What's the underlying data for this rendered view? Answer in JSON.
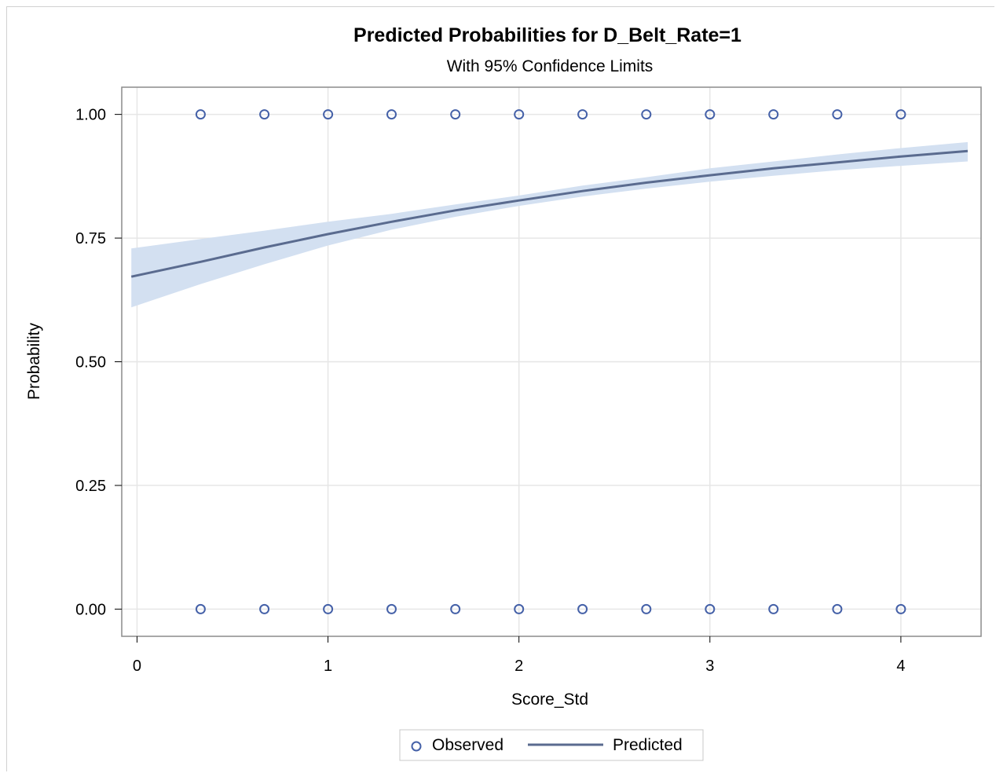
{
  "chart_data": {
    "type": "line",
    "title": "Predicted Probabilities for D_Belt_Rate=1",
    "subtitle": "With 95% Confidence Limits",
    "xlabel": "Score_Std",
    "ylabel": "Probability",
    "xlim": [
      -0.08,
      4.42
    ],
    "ylim": [
      -0.055,
      1.055
    ],
    "x_ticks": [
      0,
      1,
      2,
      3,
      4
    ],
    "x_tick_labels": [
      "0",
      "1",
      "2",
      "3",
      "4"
    ],
    "y_ticks": [
      0,
      0.25,
      0.5,
      0.75,
      1.0
    ],
    "y_tick_labels": [
      "0.00",
      "0.25",
      "0.50",
      "0.75",
      "1.00"
    ],
    "grid": true,
    "legend": {
      "position": "bottom",
      "entries": [
        "Observed",
        "Predicted"
      ]
    },
    "colors": {
      "observed": "#4561a8",
      "predicted": "#5a6b8f",
      "band": "#d3e0f1",
      "grid": "#e6e6e6"
    },
    "observed": {
      "name": "Observed",
      "x": [
        0.333,
        0.667,
        1.0,
        1.333,
        1.667,
        2.0,
        2.333,
        2.667,
        3.0,
        3.333,
        3.667,
        4.0,
        0.333,
        0.667,
        1.0,
        1.333,
        1.667,
        2.0,
        2.333,
        2.667,
        3.0,
        3.333,
        3.667,
        4.0
      ],
      "y": [
        1,
        1,
        1,
        1,
        1,
        1,
        1,
        1,
        1,
        1,
        1,
        1,
        0,
        0,
        0,
        0,
        0,
        0,
        0,
        0,
        0,
        0,
        0,
        0
      ]
    },
    "predicted": {
      "name": "Predicted",
      "x": [
        -0.03,
        0.333,
        0.667,
        1.0,
        1.333,
        1.667,
        2.0,
        2.333,
        2.667,
        3.0,
        3.333,
        3.667,
        4.0,
        4.35
      ],
      "y": [
        0.672,
        0.702,
        0.731,
        0.758,
        0.783,
        0.806,
        0.826,
        0.845,
        0.862,
        0.877,
        0.891,
        0.903,
        0.915,
        0.926
      ],
      "lower": [
        0.61,
        0.657,
        0.697,
        0.735,
        0.767,
        0.793,
        0.815,
        0.834,
        0.85,
        0.864,
        0.876,
        0.887,
        0.896,
        0.905
      ],
      "upper": [
        0.729,
        0.748,
        0.765,
        0.783,
        0.799,
        0.818,
        0.836,
        0.856,
        0.873,
        0.891,
        0.905,
        0.919,
        0.932,
        0.944
      ]
    }
  }
}
